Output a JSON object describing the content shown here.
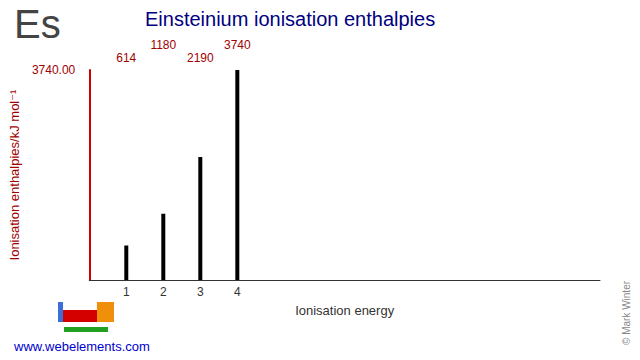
{
  "chart_data": {
    "type": "bar",
    "title": "Einsteinium ionisation enthalpies",
    "x_label": "Ionisation energy",
    "y_label": "Ionisation enthalpies/kJ mol⁻¹",
    "x": [
      1,
      2,
      3,
      4
    ],
    "values": [
      614,
      1180,
      2190,
      3740
    ],
    "color": "#000000",
    "xlim": [
      0,
      13.8
    ],
    "xticks": [
      1,
      2,
      3,
      4
    ],
    "ylim": [
      0,
      3740
    ],
    "yticks": [
      {
        "value": 3740,
        "label": "3740.00"
      }
    ],
    "data_labels": true,
    "grid": false,
    "annotations": [
      "Es",
      "www.webelements.com",
      "© Mark Winter"
    ]
  }
}
